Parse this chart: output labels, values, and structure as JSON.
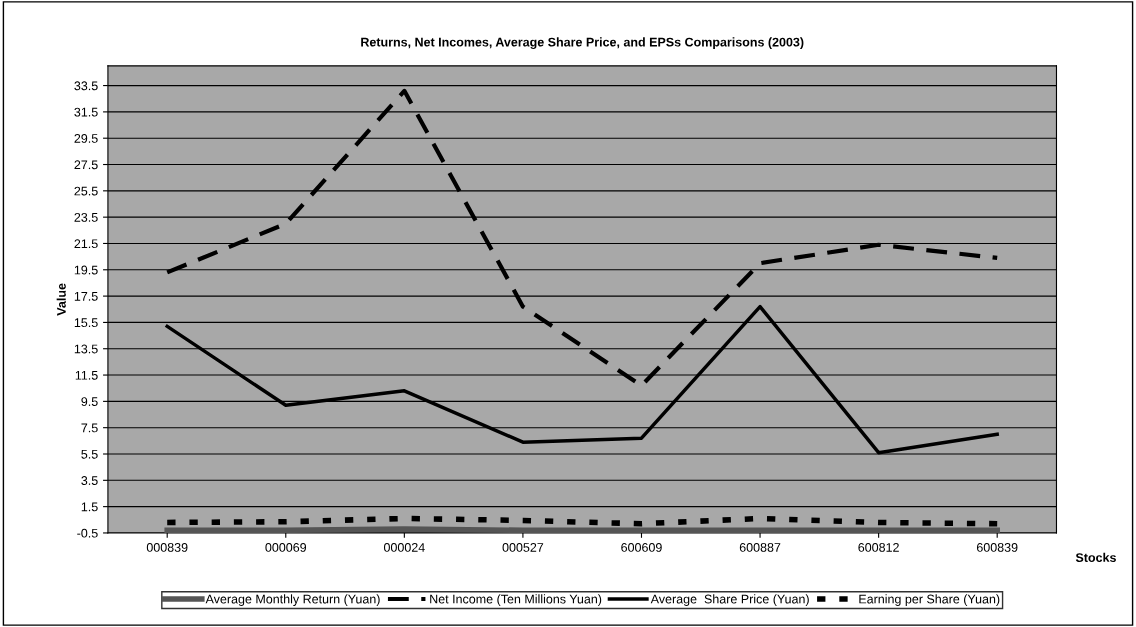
{
  "chart_data": {
    "type": "line",
    "title": "Returns, Net Incomes, Average Share Price, and EPSs Comparisons (2003)",
    "xlabel": "Stocks",
    "ylabel": "Value",
    "categories": [
      "000839",
      "000069",
      "000024",
      "000527",
      "600609",
      "600887",
      "600812",
      "600839"
    ],
    "series": [
      {
        "name": "Average Monthly Return (Yuan)",
        "color": "#555555",
        "line_style": "solid",
        "values": [
          -0.3,
          -0.3,
          -0.2,
          -0.3,
          -0.3,
          -0.3,
          -0.3,
          -0.3
        ]
      },
      {
        "name": "Net Income (Ten Millions Yuan)",
        "color": "#000000",
        "line_style": "dashed",
        "values": [
          19.3,
          23.0,
          33.1,
          16.7,
          10.7,
          20.0,
          21.4,
          20.4
        ]
      },
      {
        "name": "Average  Share Price (Yuan)",
        "color": "#000000",
        "line_style": "solid",
        "values": [
          15.2,
          9.2,
          10.3,
          6.4,
          6.7,
          16.7,
          5.6,
          7.0
        ]
      },
      {
        "name": "Earning per Share (Yuan)",
        "color": "#000000",
        "line_style": "dotted",
        "values": [
          0.3,
          0.35,
          0.6,
          0.45,
          0.2,
          0.6,
          0.3,
          0.2
        ]
      }
    ],
    "ylim": [
      -0.5,
      35
    ],
    "yticks": [
      -0.5,
      1.5,
      3.5,
      5.5,
      7.5,
      9.5,
      11.5,
      13.5,
      15.5,
      17.5,
      19.5,
      21.5,
      23.5,
      25.5,
      27.5,
      29.5,
      31.5,
      33.5
    ],
    "grid": "y",
    "legend": "bottom",
    "marker": "none"
  }
}
